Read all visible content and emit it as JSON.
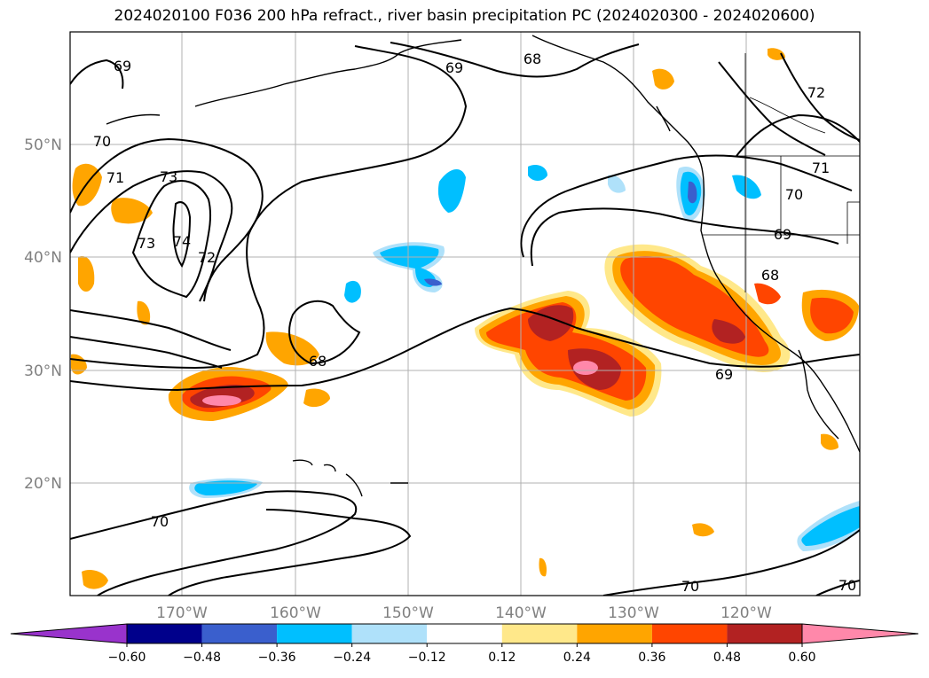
{
  "title": "2024020100 F036 200 hPa refract., river basin precipitation PC (2024020300 - 2024020600)",
  "map": {
    "lat_labels": [
      "50°N",
      "40°N",
      "30°N",
      "20°N"
    ],
    "lon_labels": [
      "170°W",
      "160°W",
      "150°W",
      "140°W",
      "130°W",
      "120°W"
    ],
    "contour_labels": [
      "69",
      "68",
      "69",
      "70",
      "71",
      "73",
      "73",
      "74",
      "72",
      "72",
      "71",
      "70",
      "69",
      "68",
      "68",
      "69",
      "70",
      "70",
      "70"
    ]
  },
  "colorbar": {
    "labels": [
      "−0.60",
      "−0.48",
      "−0.36",
      "−0.24",
      "−0.12",
      "0.12",
      "0.24",
      "0.36",
      "0.48",
      "0.60"
    ],
    "colors": [
      "#9933cc",
      "#00008b",
      "#3a5fcd",
      "#00bfff",
      "#afe1fa",
      "#ffffff",
      "#ffe88a",
      "#ffa500",
      "#ff4500",
      "#b22222",
      "#ff88aa"
    ]
  }
}
